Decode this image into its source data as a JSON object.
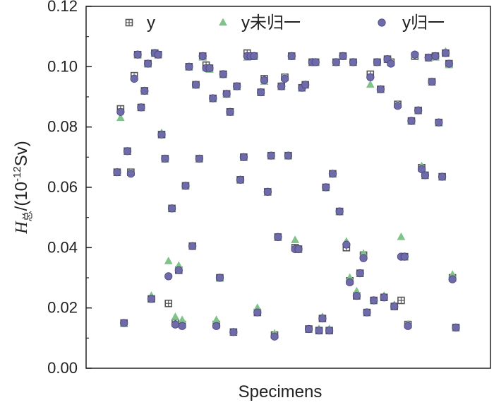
{
  "chart_data": {
    "type": "scatter",
    "title": "",
    "xlabel": "Specimens",
    "ylabel": {
      "symbol": "H",
      "subscript": "总",
      "unit_prefix": "/(10",
      "unit_exp": "-12",
      "unit_suffix": "Sv)"
    },
    "ylim": [
      0,
      0.12
    ],
    "xlim": [
      0,
      101
    ],
    "yticks": [
      "0.00",
      "0.02",
      "0.04",
      "0.06",
      "0.08",
      "0.10",
      "0.12"
    ],
    "grid": false,
    "legend_position": "top",
    "colors": {
      "y": "#555555",
      "y_unnormalized": "#7fc28a",
      "y_normalized": "#6f6aa8"
    },
    "legend": [
      {
        "label": "y",
        "marker": "square-cross",
        "color": "#555555"
      },
      {
        "label": "y未归一",
        "marker": "triangle",
        "color": "#7fc28a"
      },
      {
        "label": "y归一",
        "marker": "circle",
        "color": "#6f6aa8"
      }
    ],
    "x": [
      1,
      2,
      3,
      4,
      5,
      6,
      7,
      8,
      9,
      10,
      11,
      12,
      13,
      14,
      15,
      16,
      17,
      18,
      19,
      20,
      21,
      22,
      23,
      24,
      25,
      26,
      27,
      28,
      29,
      30,
      31,
      32,
      33,
      34,
      35,
      36,
      37,
      38,
      39,
      40,
      41,
      42,
      43,
      44,
      45,
      46,
      47,
      48,
      49,
      50,
      51,
      52,
      53,
      54,
      55,
      56,
      57,
      58,
      59,
      60,
      61,
      62,
      63,
      64,
      65,
      66,
      67,
      68,
      69,
      70,
      71,
      72,
      73,
      74,
      75,
      76,
      77,
      78,
      79,
      80,
      81,
      82,
      83,
      84,
      85,
      86,
      87,
      88,
      89,
      90,
      91,
      92,
      93,
      94,
      95,
      96,
      97,
      98,
      99,
      100
    ],
    "series": [
      {
        "name": "y",
        "values": [
          0.065,
          0.086,
          0.015,
          0.072,
          0.065,
          0.097,
          0.104,
          0.0865,
          0.092,
          0.101,
          0.023,
          0.1045,
          0.104,
          0.0775,
          0.0695,
          0.0215,
          0.053,
          0.015,
          0.0325,
          0.0145,
          0.0605,
          0.1,
          0.0405,
          0.094,
          0.0695,
          0.1035,
          0.1005,
          0.0995,
          0.0895,
          0.0145,
          0.03,
          0.0975,
          0.091,
          0.085,
          0.012,
          0.0935,
          0.0625,
          0.07,
          0.1045,
          0.1035,
          0.1035,
          0.0185,
          0.0915,
          0.096,
          0.0585,
          0.0705,
          0.011,
          0.0435,
          0.0935,
          0.0965,
          0.0705,
          0.1035,
          0.04,
          0.0395,
          0.093,
          0.094,
          0.013,
          0.1015,
          0.1015,
          0.0125,
          0.0165,
          0.06,
          0.0125,
          0.0645,
          0.1015,
          0.052,
          0.1035,
          0.04,
          0.029,
          0.1015,
          0.024,
          0.0315,
          0.0375,
          0.0185,
          0.0975,
          0.0225,
          0.1015,
          0.0925,
          0.0235,
          0.1025,
          0.1015,
          0.0205,
          0.0875,
          0.0225,
          0.037,
          0.0145,
          0.082,
          0.1035,
          0.0855,
          0.0665,
          0.064,
          0.103,
          0.095,
          0.1035,
          0.0815,
          0.0635,
          0.1045,
          0.101,
          0.03,
          0.0135
        ]
      },
      {
        "name": "y未归一",
        "values": [
          0.065,
          0.083,
          0.015,
          0.072,
          0.065,
          0.0965,
          0.104,
          0.0865,
          0.092,
          0.101,
          0.024,
          0.1045,
          0.104,
          0.078,
          0.0695,
          0.0355,
          0.053,
          0.017,
          0.034,
          0.016,
          0.0605,
          0.1,
          0.0405,
          0.094,
          0.0695,
          0.103,
          0.0995,
          0.099,
          0.0895,
          0.016,
          0.03,
          0.0975,
          0.091,
          0.085,
          0.012,
          0.0935,
          0.0625,
          0.07,
          0.103,
          0.1035,
          0.1035,
          0.02,
          0.0915,
          0.095,
          0.0585,
          0.0705,
          0.0115,
          0.0435,
          0.0935,
          0.0965,
          0.0705,
          0.1035,
          0.0425,
          0.0395,
          0.093,
          0.094,
          0.013,
          0.1015,
          0.1015,
          0.013,
          0.017,
          0.06,
          0.013,
          0.0645,
          0.1015,
          0.052,
          0.1035,
          0.042,
          0.03,
          0.1015,
          0.0255,
          0.0315,
          0.038,
          0.0185,
          0.094,
          0.0225,
          0.1015,
          0.0925,
          0.024,
          0.1025,
          0.1015,
          0.021,
          0.0875,
          0.0435,
          0.037,
          0.0145,
          0.082,
          0.104,
          0.0855,
          0.067,
          0.064,
          0.103,
          0.095,
          0.103,
          0.0815,
          0.0635,
          0.105,
          0.1005,
          0.031,
          0.0135
        ]
      },
      {
        "name": "y归一",
        "values": [
          0.065,
          0.085,
          0.015,
          0.072,
          0.0645,
          0.096,
          0.104,
          0.0865,
          0.092,
          0.101,
          0.023,
          0.1045,
          0.104,
          0.0775,
          0.0695,
          0.0305,
          0.053,
          0.0145,
          0.0325,
          0.014,
          0.0605,
          0.1,
          0.0405,
          0.094,
          0.0695,
          0.1035,
          0.0995,
          0.0995,
          0.0895,
          0.014,
          0.03,
          0.0975,
          0.091,
          0.085,
          0.012,
          0.0935,
          0.0625,
          0.07,
          0.1035,
          0.1035,
          0.1035,
          0.0185,
          0.0915,
          0.0955,
          0.0585,
          0.0705,
          0.0105,
          0.0435,
          0.0935,
          0.096,
          0.0705,
          0.1035,
          0.0395,
          0.0395,
          0.093,
          0.094,
          0.013,
          0.1015,
          0.1015,
          0.0125,
          0.0165,
          0.06,
          0.0125,
          0.0645,
          0.1015,
          0.052,
          0.1035,
          0.041,
          0.0285,
          0.1015,
          0.024,
          0.0315,
          0.0365,
          0.0185,
          0.0965,
          0.0225,
          0.1015,
          0.0925,
          0.0235,
          0.1025,
          0.101,
          0.0205,
          0.087,
          0.037,
          0.037,
          0.014,
          0.082,
          0.104,
          0.0855,
          0.066,
          0.064,
          0.103,
          0.095,
          0.1035,
          0.0815,
          0.0635,
          0.1045,
          0.101,
          0.0295,
          0.0135
        ]
      }
    ]
  }
}
